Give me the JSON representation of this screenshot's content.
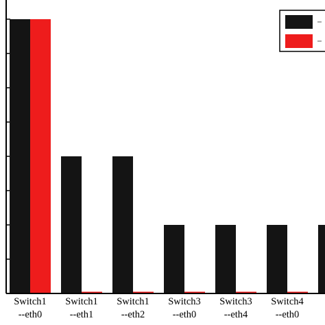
{
  "chart_data": {
    "type": "bar",
    "categories": [
      [
        "Switch1",
        "--eth0"
      ],
      [
        "Switch1",
        "--eth1"
      ],
      [
        "Switch1",
        "--eth2"
      ],
      [
        "Switch3",
        "--eth0"
      ],
      [
        "Switch3",
        "--eth4"
      ],
      [
        "Switch4",
        "--eth0"
      ],
      [
        "S",
        ""
      ]
    ],
    "series": [
      {
        "values": [
          8,
          4,
          4,
          2,
          2,
          2,
          2
        ],
        "color": "#141414"
      },
      {
        "values": [
          8,
          0.05,
          0.05,
          0.05,
          0.05,
          0.05,
          null
        ],
        "color": "#ee1c1c"
      }
    ],
    "ylim": [
      0,
      8.5
    ],
    "grid": false,
    "legend": {
      "placement": "top-right",
      "entries": [
        "",
        ""
      ]
    },
    "title": "",
    "xlabel": "",
    "ylabel": ""
  }
}
